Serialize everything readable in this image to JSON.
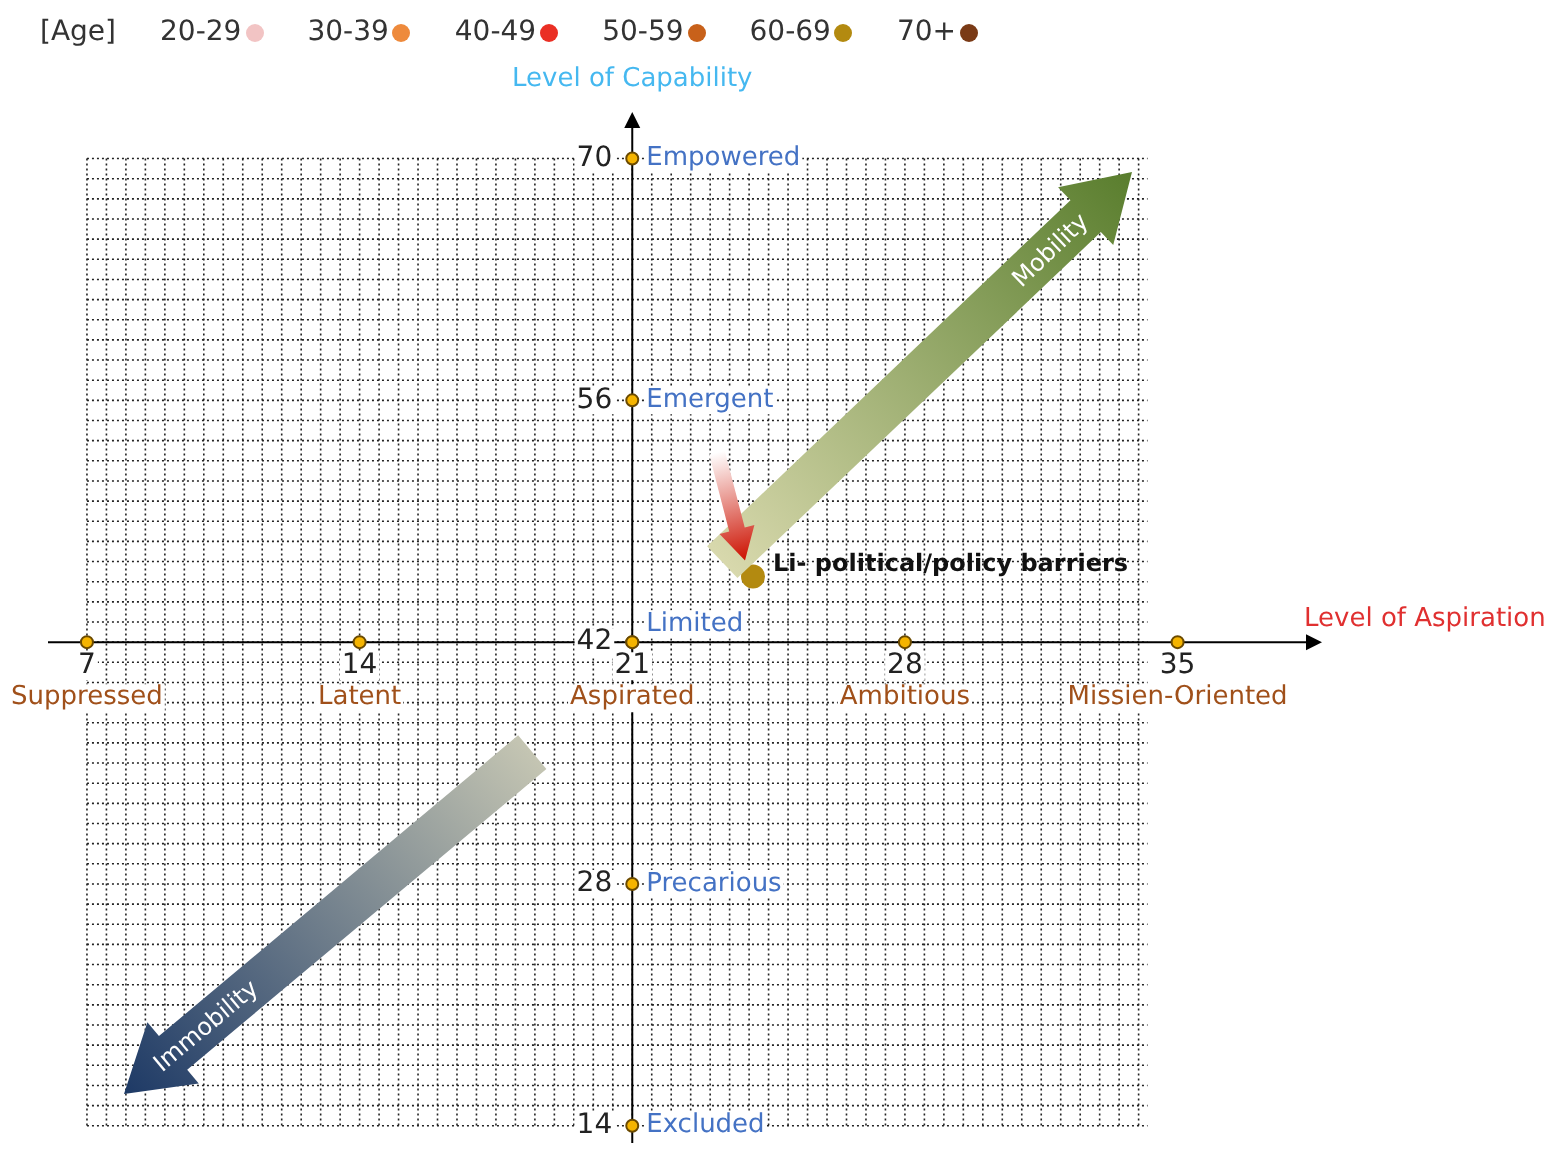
{
  "chart_data": {
    "type": "scatter",
    "xlabel": "Level of Aspiration",
    "ylabel": "Level of Capability",
    "legend_title": "[Age]",
    "legend": "top left",
    "grid": true,
    "marker": "circle",
    "xlim": [
      6,
      38.4
    ],
    "ylim": [
      13,
      72
    ],
    "xticks": [
      7,
      14,
      21,
      28,
      35
    ],
    "yticks": [
      14,
      28,
      42,
      56,
      70
    ],
    "series": [
      {
        "name": "20-29",
        "color": "#f2c4c4"
      },
      {
        "name": "30-39",
        "color": "#ee8a3c"
      },
      {
        "name": "40-49",
        "color": "#ea2f24"
      },
      {
        "name": "50-59",
        "color": "#c8611a"
      },
      {
        "name": "60-69",
        "color": "#b38a10",
        "x": [
          24.1
        ],
        "values": [
          45.8
        ]
      },
      {
        "name": "70+",
        "color": "#7a3a16"
      }
    ],
    "annotations": [
      "Suppressed",
      "Latent",
      "Aspirated",
      "Ambitious",
      "Missien-Oriented",
      "Excluded",
      "Precarious",
      "Limited",
      "Emergent",
      "Empowered",
      "Mobility",
      "Immobility",
      {
        "text": "Li- political/policy barriers",
        "x": 24.1,
        "y": 45.8
      }
    ]
  }
}
